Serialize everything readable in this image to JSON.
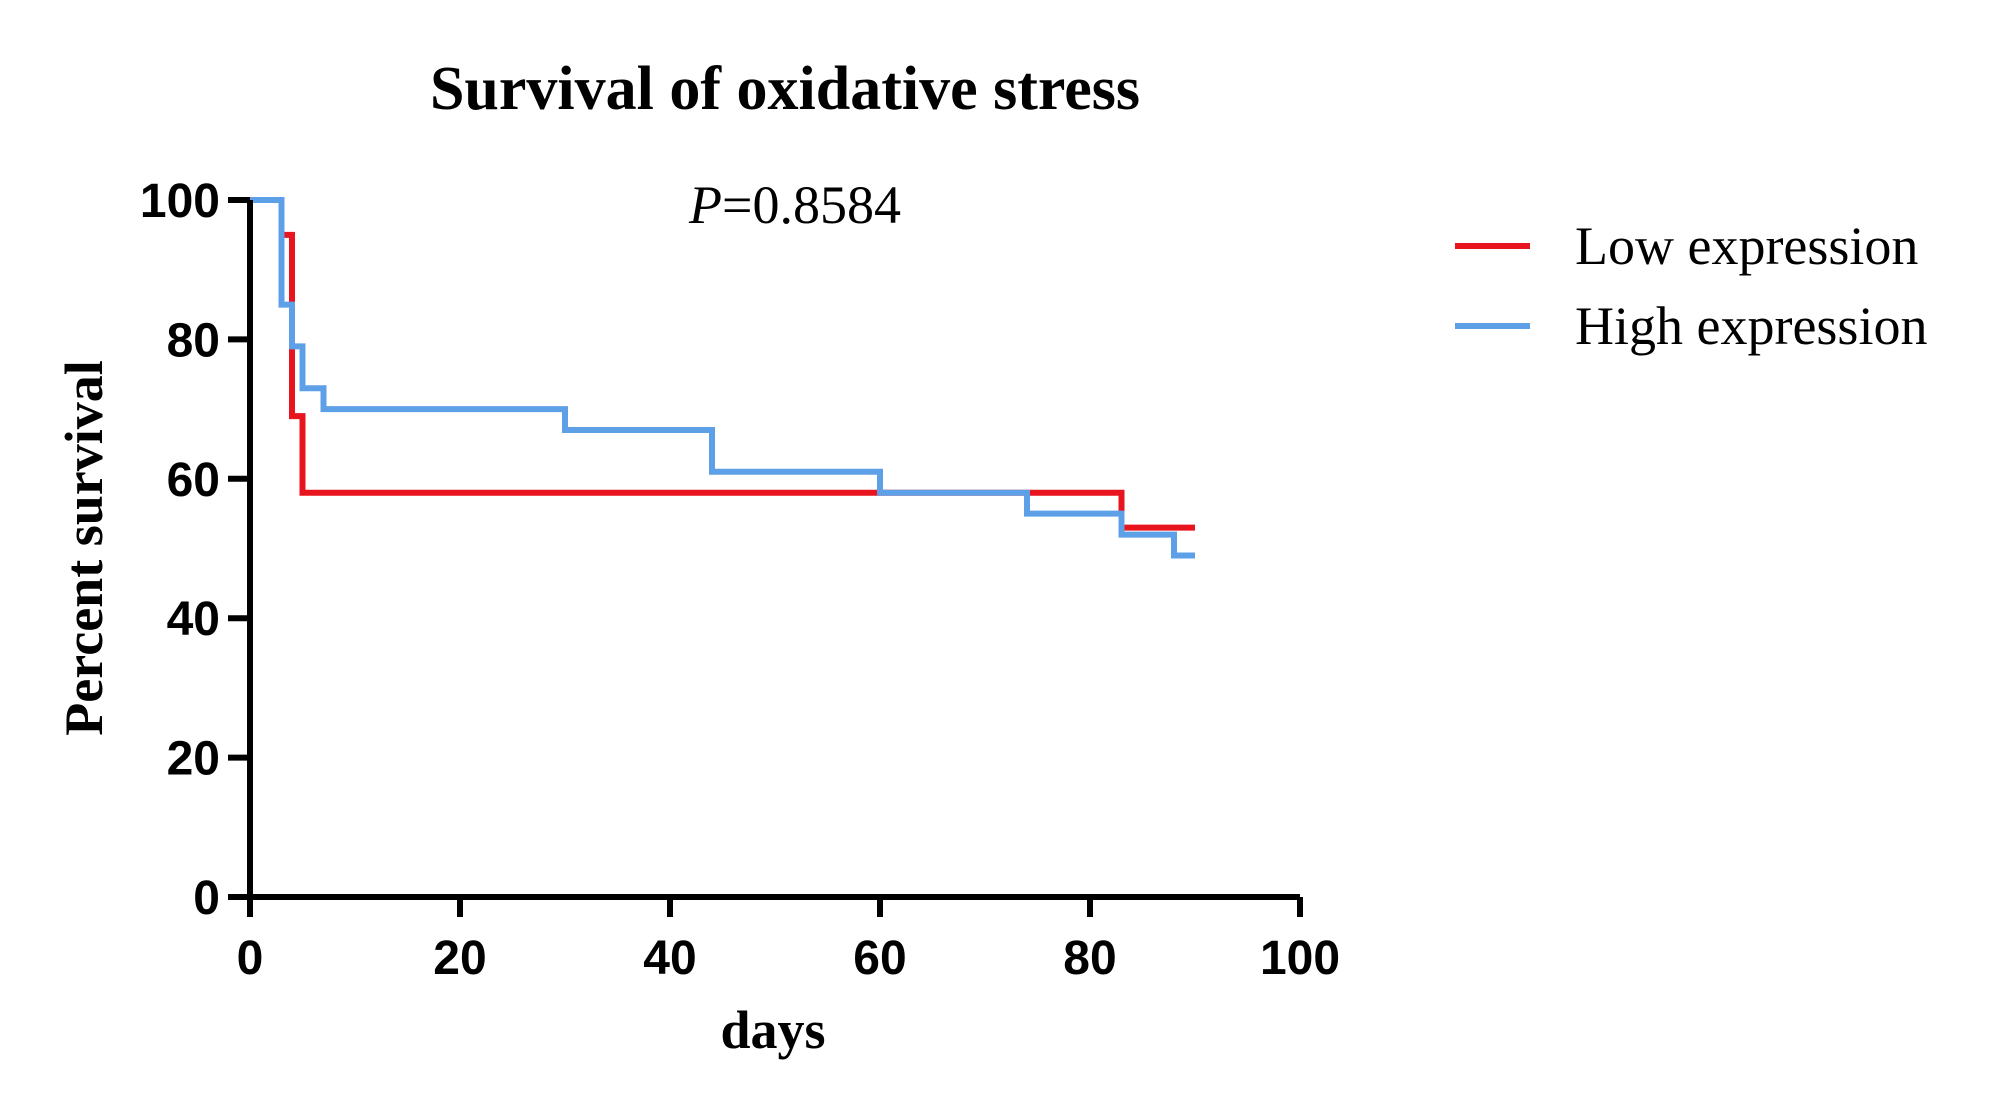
{
  "chart_data": {
    "type": "line",
    "title": "Survival of oxidative stress",
    "xlabel": "days",
    "ylabel": "Percent survival",
    "xlim": [
      0,
      100
    ],
    "ylim": [
      0,
      100
    ],
    "xticks": [
      0,
      20,
      40,
      60,
      80,
      100
    ],
    "yticks": [
      0,
      20,
      40,
      60,
      80,
      100
    ],
    "grid": false,
    "legend_position": "top-right",
    "annotation": {
      "italic": "P",
      "rest": "=0.8584"
    },
    "series": [
      {
        "name": "Low expression",
        "color": "#e8141e",
        "step": true,
        "points": [
          [
            0,
            100
          ],
          [
            3,
            100
          ],
          [
            3,
            95
          ],
          [
            4,
            95
          ],
          [
            4,
            69
          ],
          [
            5,
            69
          ],
          [
            5,
            58
          ],
          [
            83,
            58
          ],
          [
            83,
            53
          ],
          [
            90,
            53
          ]
        ]
      },
      {
        "name": "High expression",
        "color": "#5ea0e8",
        "step": true,
        "points": [
          [
            0,
            100
          ],
          [
            3,
            100
          ],
          [
            3,
            85
          ],
          [
            4,
            85
          ],
          [
            4,
            79
          ],
          [
            5,
            79
          ],
          [
            5,
            73
          ],
          [
            7,
            73
          ],
          [
            7,
            70
          ],
          [
            30,
            70
          ],
          [
            30,
            67
          ],
          [
            44,
            67
          ],
          [
            44,
            61
          ],
          [
            60,
            61
          ],
          [
            60,
            58
          ],
          [
            74,
            58
          ],
          [
            74,
            55
          ],
          [
            83,
            55
          ],
          [
            83,
            52
          ],
          [
            88,
            52
          ],
          [
            88,
            49
          ],
          [
            90,
            49
          ]
        ]
      }
    ]
  }
}
